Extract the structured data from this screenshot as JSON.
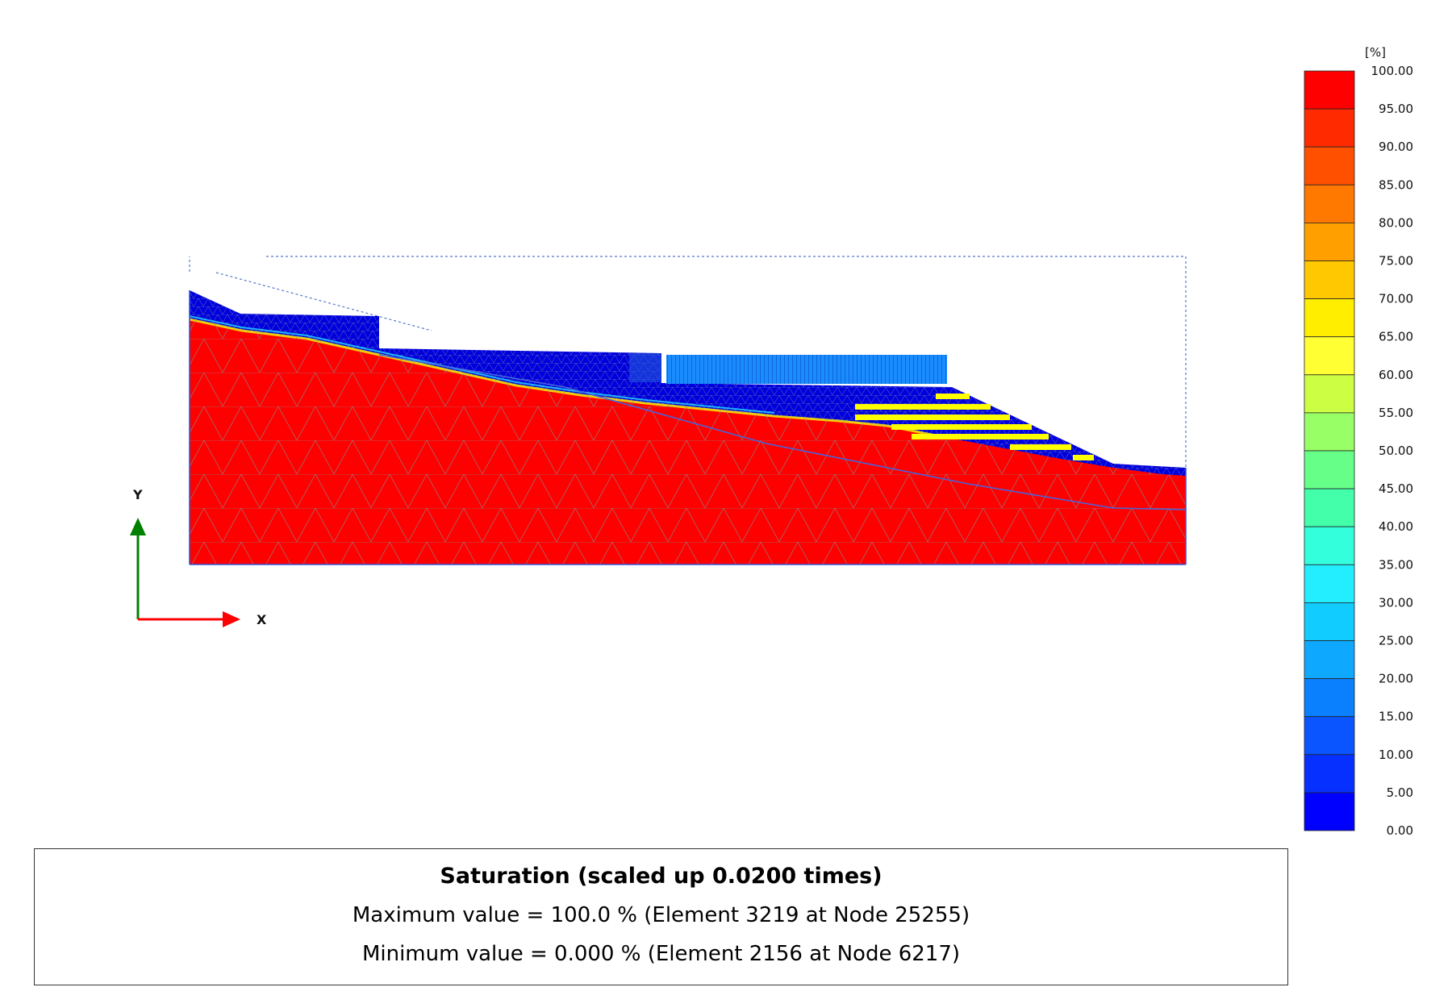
{
  "legend": {
    "unit": "[%]",
    "labels": [
      "100.00",
      "95.00",
      "90.00",
      "85.00",
      "80.00",
      "75.00",
      "70.00",
      "65.00",
      "60.00",
      "55.00",
      "50.00",
      "45.00",
      "40.00",
      "35.00",
      "30.00",
      "25.00",
      "20.00",
      "15.00",
      "10.00",
      "5.00",
      "0.00"
    ],
    "colors": [
      "#ff0000",
      "#ff2a00",
      "#ff5000",
      "#ff7800",
      "#ff9f00",
      "#ffc800",
      "#ffee00",
      "#ffff33",
      "#ccff44",
      "#99ff66",
      "#66ff88",
      "#44ffaa",
      "#33ffdd",
      "#22eeff",
      "#11ccff",
      "#0fa8ff",
      "#0a80ff",
      "#0a55ff",
      "#0630ff",
      "#0000ff"
    ]
  },
  "axes": {
    "x_label": "X",
    "y_label": "Y",
    "x_color": "#ff0000",
    "y_color": "#008000"
  },
  "model": {
    "saturated_color": "#ff0000",
    "dry_color": "#0000dd",
    "structure_color": "#1a8cff",
    "anchor_color": "#ffff00"
  },
  "info": {
    "title": "Saturation (scaled up 0.0200 times)",
    "max_line": "Maximum value = 100.0 % (Element 3219 at Node 25255)",
    "min_line": "Minimum value = 0.000 % (Element 2156 at Node 6217)"
  }
}
